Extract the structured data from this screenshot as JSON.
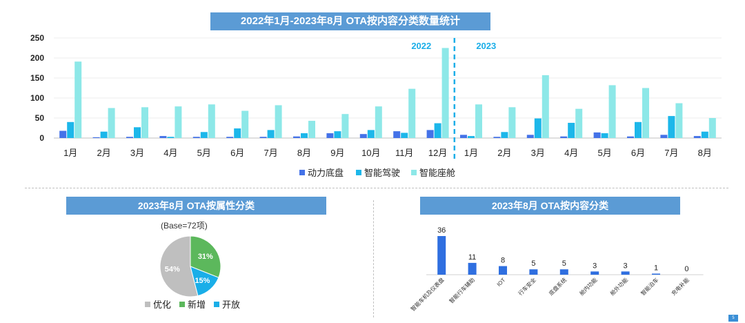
{
  "titles": {
    "main": "2022年1月-2023年8月 OTA按内容分类数量统计",
    "left": "2023年8月 OTA按属性分类",
    "right": "2023年8月 OTA按内容分类"
  },
  "base_label": "(Base=72项)",
  "page_number": "5",
  "colors": {
    "banner": "#5b9bd5",
    "powertrain": "#4472e8",
    "adas": "#1cb7ea",
    "cockpit": "#8de8e8",
    "pie_optimize": "#bfbfbf",
    "pie_new": "#5cb85c",
    "pie_open": "#1aaee8",
    "small_bar": "#2f6fe0"
  },
  "chart_data": [
    {
      "type": "bar",
      "title": "2022年1月-2023年8月 OTA按内容分类数量统计",
      "categories": [
        "1月",
        "2月",
        "3月",
        "4月",
        "5月",
        "6月",
        "7月",
        "8月",
        "9月",
        "10月",
        "11月",
        "12月",
        "1月",
        "2月",
        "3月",
        "4月",
        "5月",
        "6月",
        "7月",
        "8月"
      ],
      "series": [
        {
          "name": "动力底盘",
          "values": [
            18,
            2,
            3,
            5,
            3,
            3,
            3,
            4,
            12,
            10,
            17,
            20,
            8,
            3,
            8,
            4,
            14,
            4,
            8,
            5
          ]
        },
        {
          "name": "智能驾驶",
          "values": [
            40,
            16,
            27,
            3,
            15,
            24,
            20,
            12,
            17,
            20,
            13,
            37,
            5,
            15,
            49,
            38,
            12,
            40,
            55,
            16
          ]
        },
        {
          "name": "智能座舱",
          "values": [
            191,
            75,
            77,
            79,
            84,
            68,
            82,
            43,
            60,
            79,
            123,
            225,
            84,
            77,
            157,
            73,
            132,
            125,
            87,
            50
          ]
        }
      ],
      "ylim": [
        0,
        250
      ],
      "yticks": [
        0,
        50,
        100,
        150,
        200,
        250
      ],
      "annotations": [
        "2022",
        "2023"
      ],
      "legend_position": "bottom"
    },
    {
      "type": "pie",
      "title": "2023年8月 OTA按属性分类",
      "labels": [
        "优化",
        "新增",
        "开放"
      ],
      "values": [
        54,
        31,
        15
      ],
      "value_labels": [
        "54%",
        "31%",
        "15%"
      ],
      "legend_position": "bottom"
    },
    {
      "type": "bar",
      "title": "2023年8月 OTA按内容分类",
      "categories": [
        "智能车机及仪表盘",
        "智能行车辅助",
        "IOT",
        "行车安全",
        "底盘系统",
        "舱内功能",
        "舱外功能",
        "智能泊车",
        "充电补能"
      ],
      "values": [
        36,
        11,
        8,
        5,
        5,
        3,
        3,
        1,
        0
      ],
      "data_labels": [
        "36",
        "11",
        "8",
        "5",
        "5",
        "3",
        "3",
        "1",
        "0"
      ]
    }
  ]
}
